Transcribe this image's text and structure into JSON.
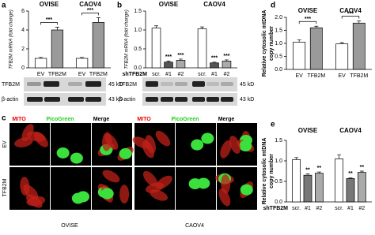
{
  "panel_labels": [
    "a",
    "b",
    "c",
    "d",
    "e"
  ],
  "chart_data": [
    {
      "type": "bar",
      "y_label": "TFB2M mRNA (fold change)",
      "groups": [
        "OVISE",
        "CAOV4"
      ],
      "categories": [
        "EV",
        "TFB2M",
        "EV",
        "TFB2M"
      ],
      "values": [
        1.0,
        4.0,
        1.0,
        4.8
      ],
      "errors": [
        0.1,
        0.3,
        0.1,
        0.5
      ],
      "colors": [
        "#ffffff",
        "#9a9a9a",
        "#ffffff",
        "#9a9a9a"
      ],
      "significance": [
        null,
        "***",
        null,
        "***"
      ],
      "ylim": [
        0,
        6
      ],
      "yticks": [
        0,
        2,
        4,
        6
      ]
    },
    {
      "type": "bar",
      "y_label": "TFB2M mRNA (fold change)",
      "x_label": "shTFB2M",
      "groups": [
        "OVISE",
        "CAOV4"
      ],
      "categories": [
        "scr.",
        "#1",
        "#2",
        "scr.",
        "#1",
        "#2"
      ],
      "values": [
        1.05,
        0.15,
        0.2,
        1.03,
        0.13,
        0.18
      ],
      "errors": [
        0.06,
        0.03,
        0.03,
        0.05,
        0.02,
        0.03
      ],
      "colors": [
        "#ffffff",
        "#555555",
        "#aaaaaa",
        "#ffffff",
        "#555555",
        "#aaaaaa"
      ],
      "significance": [
        null,
        "***",
        "***",
        null,
        "***",
        "***"
      ],
      "ylim": [
        0,
        1.5
      ],
      "yticks": [
        {
          "value": 0,
          "label": "0.0"
        },
        0.5,
        {
          "value": 1,
          "label": "1.0"
        },
        1.5
      ]
    },
    {
      "type": "bar",
      "y_label": [
        "Relative cytosolic mtDNA",
        "copy number"
      ],
      "groups": [
        "OVISE",
        "CAOV4"
      ],
      "categories": [
        "EV",
        "TFB2M",
        "EV",
        "TFB2M"
      ],
      "values": [
        1.05,
        1.6,
        0.98,
        1.78
      ],
      "errors": [
        0.08,
        0.06,
        0.05,
        0.08
      ],
      "colors": [
        "#ffffff",
        "#9a9a9a",
        "#ffffff",
        "#9a9a9a"
      ],
      "significance": [
        null,
        "***",
        null,
        "***"
      ],
      "ylim": [
        0,
        2
      ],
      "yticks": [
        {
          "value": 0,
          "label": "0.0"
        },
        0.5,
        {
          "value": 1,
          "label": "1.0"
        },
        1.5,
        {
          "value": 2,
          "label": "2.0"
        }
      ]
    },
    {
      "type": "bar",
      "y_label": [
        "Relative cytosolic mtDNA",
        "copy number"
      ],
      "x_label": "shTFB2M",
      "groups": [
        "OVISE",
        "CAOV4"
      ],
      "categories": [
        "scr.",
        "#1",
        "#2",
        "scr.",
        "#1",
        "#2"
      ],
      "values": [
        1.03,
        0.65,
        0.7,
        1.05,
        0.57,
        0.72
      ],
      "errors": [
        0.05,
        0.03,
        0.03,
        0.1,
        0.02,
        0.03
      ],
      "colors": [
        "#ffffff",
        "#777777",
        "#aaaaaa",
        "#ffffff",
        "#777777",
        "#aaaaaa"
      ],
      "significance": [
        null,
        "**",
        "**",
        null,
        "**",
        "**"
      ],
      "ylim": [
        0,
        1.5
      ],
      "yticks": [
        {
          "value": 0,
          "label": "0.0"
        },
        0.5,
        {
          "value": 1,
          "label": "1.0"
        },
        1.5
      ]
    }
  ],
  "blots": [
    {
      "bands": [
        "TFB2M",
        "β-actin"
      ],
      "sizes": [
        "45 kD",
        "43 kD"
      ]
    },
    {
      "bands": [
        "TFB2M",
        "β-actin"
      ],
      "sizes": [
        "45 kD",
        "43 kD"
      ]
    }
  ],
  "microscopy": {
    "channels": [
      "MITO",
      "PicoGreen",
      "Merge"
    ],
    "conditions": [
      "EV",
      "TFB2M"
    ],
    "cell_lines": [
      "OVISE",
      "CAOV4"
    ]
  }
}
